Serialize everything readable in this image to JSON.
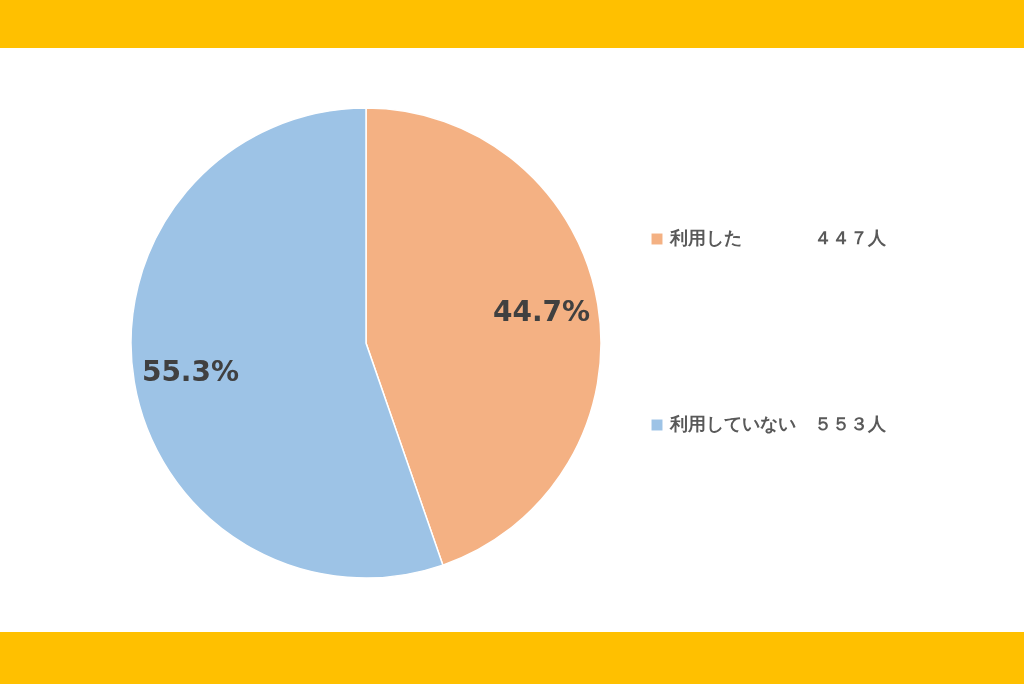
{
  "chart_data": {
    "type": "pie",
    "categories": [
      "利用した　　　　４４７人",
      "利用していない　５５３人"
    ],
    "values": [
      44.7,
      55.3
    ],
    "colors": [
      "#f4b183",
      "#9dc3e6"
    ],
    "value_labels": [
      "44.7%",
      "55.3%"
    ],
    "legend": "right"
  }
}
